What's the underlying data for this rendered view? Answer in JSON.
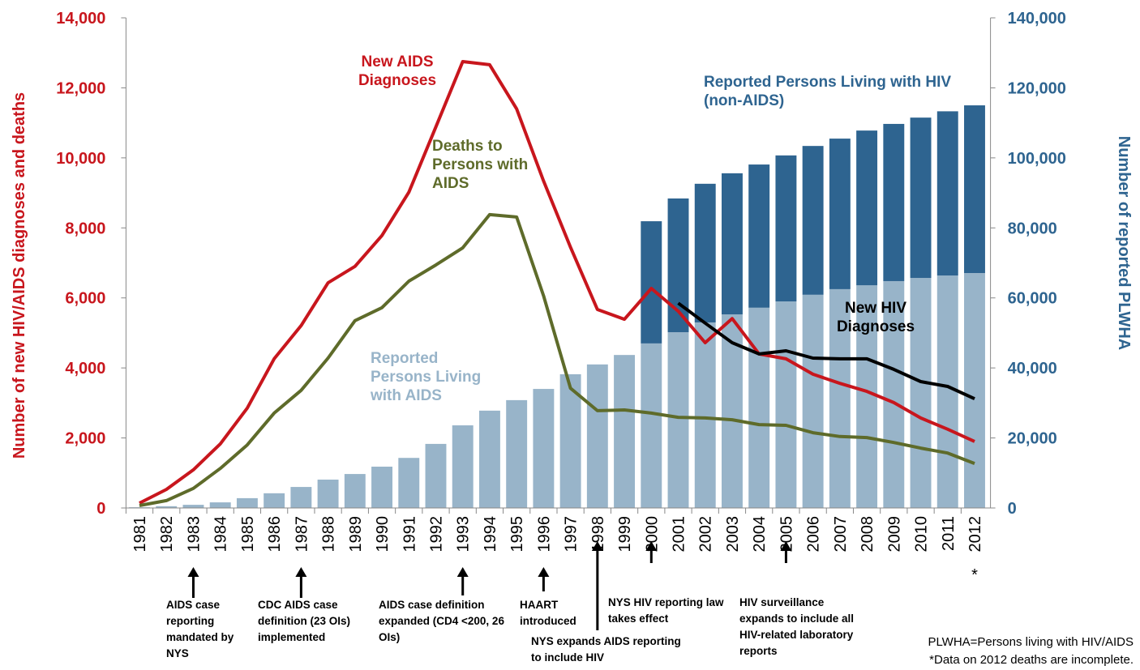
{
  "chart_data": {
    "type": "bar",
    "stacked": true,
    "ylabel": "Number of new HIV/AIDS diagnoses and deaths",
    "y2label": "Number of reported PLWHA",
    "categories": [
      "1981",
      "1982",
      "1983",
      "1984",
      "1985",
      "1986",
      "1987",
      "1988",
      "1989",
      "1990",
      "1991",
      "1992",
      "1993",
      "1994",
      "1995",
      "1996",
      "1997",
      "1998",
      "1999",
      "2000",
      "2001",
      "2002",
      "2003",
      "2004",
      "2005",
      "2006",
      "2007",
      "2008",
      "2009",
      "2010",
      "2011",
      "2012"
    ],
    "ylim": [
      0,
      14000
    ],
    "yticks": [
      0,
      {
        "value": 2000,
        "label": "2,000"
      },
      {
        "value": 4000,
        "label": "4,000"
      },
      {
        "value": 6000,
        "label": "6,000"
      },
      {
        "value": 8000,
        "label": "8,000"
      },
      {
        "value": 10000,
        "label": "10,000"
      },
      {
        "value": 12000,
        "label": "12,000"
      },
      {
        "value": 14000,
        "label": "14,000"
      }
    ],
    "y2lim": [
      0,
      140000
    ],
    "y2ticks": [
      0,
      {
        "value": 20000,
        "label": "20,000"
      },
      {
        "value": 40000,
        "label": "40,000"
      },
      {
        "value": 60000,
        "label": "60,000"
      },
      {
        "value": 80000,
        "label": "80,000"
      },
      {
        "value": 100000,
        "label": "100,000"
      },
      {
        "value": 120000,
        "label": "120,000"
      },
      {
        "value": 140000,
        "label": "140,000"
      }
    ],
    "series": [
      {
        "name": "Reported Persons Living with AIDS",
        "type": "bar",
        "axis": "y2",
        "color": "#98b4c9",
        "values": [
          200,
          500,
          900,
          1600,
          2800,
          4200,
          6000,
          8100,
          9700,
          11800,
          14300,
          18300,
          23600,
          27800,
          30800,
          34000,
          38200,
          41000,
          43700,
          47000,
          50200,
          53000,
          55300,
          57200,
          59000,
          60900,
          62500,
          63600,
          64800,
          65700,
          66400,
          67100
        ]
      },
      {
        "name": "Reported Persons Living with HIV (non-AIDS)",
        "type": "bar",
        "axis": "y2",
        "color": "#2e6490",
        "values": [
          null,
          null,
          null,
          null,
          null,
          null,
          null,
          null,
          null,
          null,
          null,
          null,
          null,
          null,
          null,
          null,
          null,
          null,
          null,
          34900,
          38200,
          39600,
          40300,
          40900,
          41700,
          42500,
          43000,
          44200,
          44900,
          45800,
          46900,
          47900
        ]
      },
      {
        "name": "New AIDS Diagnoses",
        "type": "line",
        "color": "#c8161d",
        "values": [
          140,
          530,
          1090,
          1830,
          2850,
          4260,
          5210,
          6430,
          6900,
          7780,
          9020,
          10880,
          12750,
          12660,
          11400,
          9340,
          7450,
          5670,
          5390,
          6270,
          5620,
          4720,
          5410,
          4400,
          4260,
          3820,
          3560,
          3330,
          3010,
          2570,
          2250,
          1900
        ]
      },
      {
        "name": "Deaths to Persons with AIDS",
        "type": "line",
        "color": "#5e6b2a",
        "values": [
          70,
          210,
          560,
          1130,
          1800,
          2710,
          3360,
          4280,
          5350,
          5720,
          6480,
          6940,
          7430,
          8380,
          8310,
          6060,
          3420,
          2780,
          2800,
          2710,
          2590,
          2570,
          2520,
          2380,
          2360,
          2150,
          2040,
          2010,
          1870,
          1710,
          1570,
          1270
        ]
      },
      {
        "name": "New HIV Diagnoses",
        "type": "line",
        "color": "#000000",
        "values": [
          null,
          null,
          null,
          null,
          null,
          null,
          null,
          null,
          null,
          null,
          null,
          null,
          null,
          null,
          null,
          null,
          null,
          null,
          null,
          null,
          5850,
          5280,
          4720,
          4400,
          4490,
          4280,
          4260,
          4260,
          3960,
          3610,
          3470,
          3120
        ]
      }
    ],
    "annotations": [
      "AIDS case reporting mandated by NYS",
      "CDC AIDS case definition (23 OIs) implemented",
      "AIDS case definition expanded (CD4 <200, 26 OIs)",
      "HAART introduced",
      "NYS expands AIDS reporting to include HIV",
      "NYS HIV reporting law takes effect",
      "HIV surveillance expands to include all HIV-related laboratory reports"
    ],
    "footnote_marker": "*",
    "notes": [
      "PLWHA=Persons living with HIV/AIDS",
      "*Data on 2012 deaths are incomplete."
    ]
  }
}
